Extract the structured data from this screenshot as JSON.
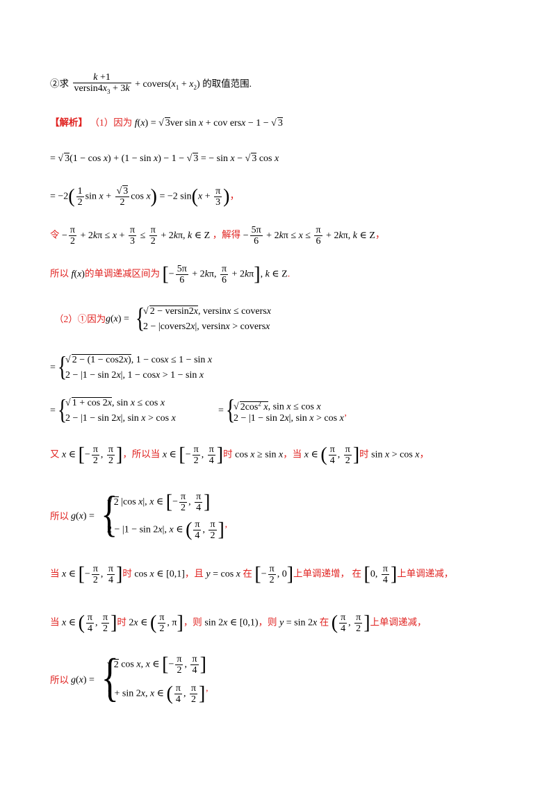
{
  "lines": {
    "q2_prefix": "②求",
    "q2_suffix": "的取值范围.",
    "analysis_tag": "【解析】",
    "part1_intro": "（1）因为",
    "let_text": "令",
    "solve_text": "，解得",
    "so_f_text": "所以",
    "decreasing_interval_text": "的单调递减区间为",
    "part2_intro": "（2）①因为",
    "also_text": "又",
    "so_when_text": "，所以当",
    "when_text": "当",
    "time_text": "时",
    "comma_when": "，当",
    "so_g_text": "所以",
    "and_text": "，且",
    "on_text": "在",
    "inc_text": "上单调递增，",
    "dec_text": "上单调递减，",
    "then_text": "，则",
    "dec_text2": "上单调递减，"
  }
}
